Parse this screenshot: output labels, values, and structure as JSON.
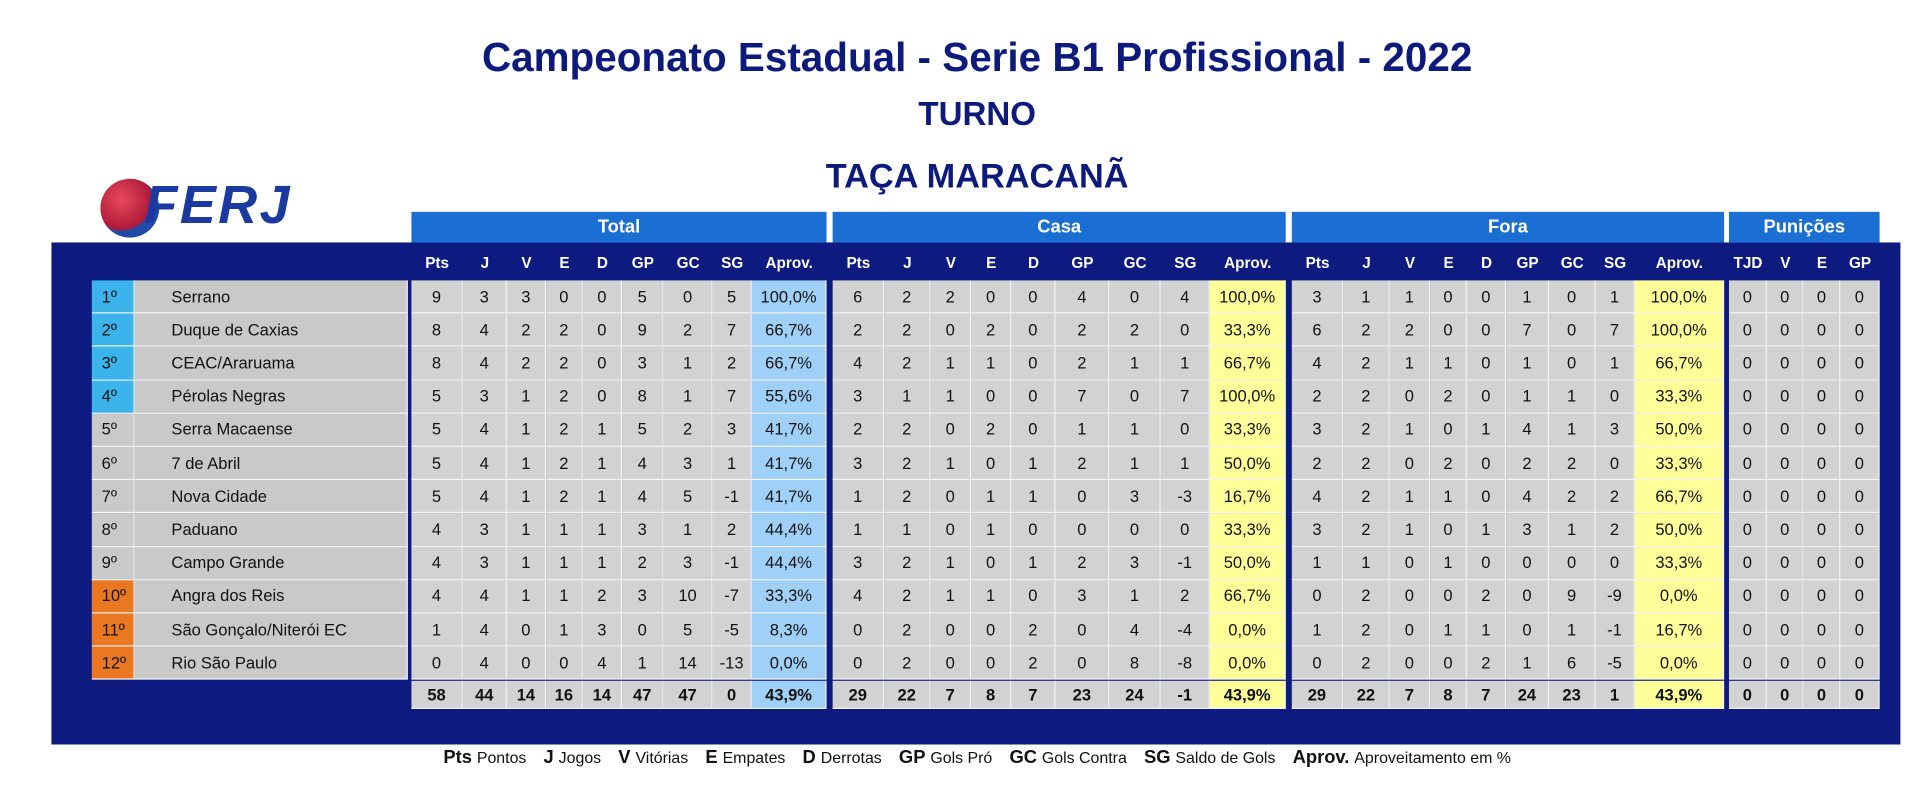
{
  "header": {
    "title": "Campeonato Estadual - Serie B1 Profissional - 2022",
    "subtitle": "TURNO",
    "cup": "TAÇA MARACANÃ",
    "logo_text": "FERJ"
  },
  "table": {
    "groups": [
      "Total",
      "Casa",
      "Fora",
      "Punições"
    ],
    "columns": [
      "Pts",
      "J",
      "V",
      "E",
      "D",
      "GP",
      "GC",
      "SG",
      "Aprov.",
      "Pts",
      "J",
      "V",
      "E",
      "D",
      "GP",
      "GC",
      "SG",
      "Aprov.",
      "Pts",
      "J",
      "V",
      "E",
      "D",
      "GP",
      "GC",
      "SG",
      "Aprov.",
      "TJD",
      "V",
      "E",
      "GP"
    ],
    "rows": [
      [
        "1º",
        "Serrano",
        "9",
        "3",
        "3",
        "0",
        "0",
        "5",
        "0",
        "5",
        "100,0%",
        "6",
        "2",
        "2",
        "0",
        "0",
        "4",
        "0",
        "4",
        "100,0%",
        "3",
        "1",
        "1",
        "0",
        "0",
        "1",
        "0",
        "1",
        "100,0%",
        "0",
        "0",
        "0",
        "0"
      ],
      [
        "2º",
        "Duque de Caxias",
        "8",
        "4",
        "2",
        "2",
        "0",
        "9",
        "2",
        "7",
        "66,7%",
        "2",
        "2",
        "0",
        "2",
        "0",
        "2",
        "2",
        "0",
        "33,3%",
        "6",
        "2",
        "2",
        "0",
        "0",
        "7",
        "0",
        "7",
        "100,0%",
        "0",
        "0",
        "0",
        "0"
      ],
      [
        "3º",
        "CEAC/Araruama",
        "8",
        "4",
        "2",
        "2",
        "0",
        "3",
        "1",
        "2",
        "66,7%",
        "4",
        "2",
        "1",
        "1",
        "0",
        "2",
        "1",
        "1",
        "66,7%",
        "4",
        "2",
        "1",
        "1",
        "0",
        "1",
        "0",
        "1",
        "66,7%",
        "0",
        "0",
        "0",
        "0"
      ],
      [
        "4º",
        "Pérolas Negras",
        "5",
        "3",
        "1",
        "2",
        "0",
        "8",
        "1",
        "7",
        "55,6%",
        "3",
        "1",
        "1",
        "0",
        "0",
        "7",
        "0",
        "7",
        "100,0%",
        "2",
        "2",
        "0",
        "2",
        "0",
        "1",
        "1",
        "0",
        "33,3%",
        "0",
        "0",
        "0",
        "0"
      ],
      [
        "5º",
        "Serra Macaense",
        "5",
        "4",
        "1",
        "2",
        "1",
        "5",
        "2",
        "3",
        "41,7%",
        "2",
        "2",
        "0",
        "2",
        "0",
        "1",
        "1",
        "0",
        "33,3%",
        "3",
        "2",
        "1",
        "0",
        "1",
        "4",
        "1",
        "3",
        "50,0%",
        "0",
        "0",
        "0",
        "0"
      ],
      [
        "6º",
        "7 de Abril",
        "5",
        "4",
        "1",
        "2",
        "1",
        "4",
        "3",
        "1",
        "41,7%",
        "3",
        "2",
        "1",
        "0",
        "1",
        "2",
        "1",
        "1",
        "50,0%",
        "2",
        "2",
        "0",
        "2",
        "0",
        "2",
        "2",
        "0",
        "33,3%",
        "0",
        "0",
        "0",
        "0"
      ],
      [
        "7º",
        "Nova Cidade",
        "5",
        "4",
        "1",
        "2",
        "1",
        "4",
        "5",
        "-1",
        "41,7%",
        "1",
        "2",
        "0",
        "1",
        "1",
        "0",
        "3",
        "-3",
        "16,7%",
        "4",
        "2",
        "1",
        "1",
        "0",
        "4",
        "2",
        "2",
        "66,7%",
        "0",
        "0",
        "0",
        "0"
      ],
      [
        "8º",
        "Paduano",
        "4",
        "3",
        "1",
        "1",
        "1",
        "3",
        "1",
        "2",
        "44,4%",
        "1",
        "1",
        "0",
        "1",
        "0",
        "0",
        "0",
        "0",
        "33,3%",
        "3",
        "2",
        "1",
        "0",
        "1",
        "3",
        "1",
        "2",
        "50,0%",
        "0",
        "0",
        "0",
        "0"
      ],
      [
        "9º",
        "Campo Grande",
        "4",
        "3",
        "1",
        "1",
        "1",
        "2",
        "3",
        "-1",
        "44,4%",
        "3",
        "2",
        "1",
        "0",
        "1",
        "2",
        "3",
        "-1",
        "50,0%",
        "1",
        "1",
        "0",
        "1",
        "0",
        "0",
        "0",
        "0",
        "33,3%",
        "0",
        "0",
        "0",
        "0"
      ],
      [
        "10º",
        "Angra dos Reis",
        "4",
        "4",
        "1",
        "1",
        "2",
        "3",
        "10",
        "-7",
        "33,3%",
        "4",
        "2",
        "1",
        "1",
        "0",
        "3",
        "1",
        "2",
        "66,7%",
        "0",
        "2",
        "0",
        "0",
        "2",
        "0",
        "9",
        "-9",
        "0,0%",
        "0",
        "0",
        "0",
        "0"
      ],
      [
        "11º",
        "São Gonçalo/Niterói EC",
        "1",
        "4",
        "0",
        "1",
        "3",
        "0",
        "5",
        "-5",
        "8,3%",
        "0",
        "2",
        "0",
        "0",
        "2",
        "0",
        "4",
        "-4",
        "0,0%",
        "1",
        "2",
        "0",
        "1",
        "1",
        "0",
        "1",
        "-1",
        "16,7%",
        "0",
        "0",
        "0",
        "0"
      ],
      [
        "12º",
        "Rio São Paulo",
        "0",
        "4",
        "0",
        "0",
        "4",
        "1",
        "14",
        "-13",
        "0,0%",
        "0",
        "2",
        "0",
        "0",
        "2",
        "0",
        "8",
        "-8",
        "0,0%",
        "0",
        "2",
        "0",
        "0",
        "2",
        "1",
        "6",
        "-5",
        "0,0%",
        "0",
        "0",
        "0",
        "0"
      ]
    ],
    "totals": [
      "58",
      "44",
      "14",
      "16",
      "14",
      "47",
      "47",
      "0",
      "43,9%",
      "29",
      "22",
      "7",
      "8",
      "7",
      "23",
      "24",
      "-1",
      "43,9%",
      "29",
      "22",
      "7",
      "8",
      "7",
      "24",
      "23",
      "1",
      "43,9%",
      "0",
      "0",
      "0",
      "0"
    ]
  },
  "legend": [
    {
      "abbr": "Pts",
      "text": "Pontos"
    },
    {
      "abbr": "J",
      "text": "Jogos"
    },
    {
      "abbr": "V",
      "text": "Vitórias"
    },
    {
      "abbr": "E",
      "text": "Empates"
    },
    {
      "abbr": "D",
      "text": "Derrotas"
    },
    {
      "abbr": "GP",
      "text": "Gols Pró"
    },
    {
      "abbr": "GC",
      "text": "Gols Contra"
    },
    {
      "abbr": "SG",
      "text": "Saldo de Gols"
    },
    {
      "abbr": "Aprov.",
      "text": "Aproveitamento em %"
    }
  ]
}
